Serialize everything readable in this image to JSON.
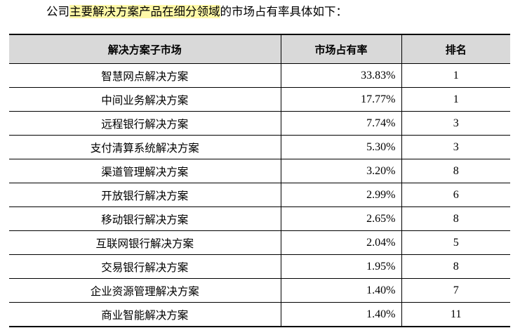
{
  "intro": {
    "before": "公司",
    "highlight": "主要解决方案产品在细分领域",
    "after": "的市场占有率具体如下："
  },
  "table": {
    "headers": {
      "segment": "解决方案子市场",
      "share": "市场占有率",
      "rank": "排名"
    },
    "rows": [
      {
        "segment": "智慧网点解决方案",
        "share": "33.83%",
        "rank": "1"
      },
      {
        "segment": "中间业务解决方案",
        "share": "17.77%",
        "rank": "1"
      },
      {
        "segment": "远程银行解决方案",
        "share": "7.74%",
        "rank": "3"
      },
      {
        "segment": "支付清算系统解决方案",
        "share": "5.30%",
        "rank": "3"
      },
      {
        "segment": "渠道管理解决方案",
        "share": "3.20%",
        "rank": "8"
      },
      {
        "segment": "开放银行解决方案",
        "share": "2.99%",
        "rank": "6"
      },
      {
        "segment": "移动银行解决方案",
        "share": "2.65%",
        "rank": "8"
      },
      {
        "segment": "互联网银行解决方案",
        "share": "2.04%",
        "rank": "5"
      },
      {
        "segment": "交易银行解决方案",
        "share": "1.95%",
        "rank": "8"
      },
      {
        "segment": "企业资源管理解决方案",
        "share": "1.40%",
        "rank": "7"
      },
      {
        "segment": "商业智能解决方案",
        "share": "1.40%",
        "rank": "11"
      }
    ]
  }
}
